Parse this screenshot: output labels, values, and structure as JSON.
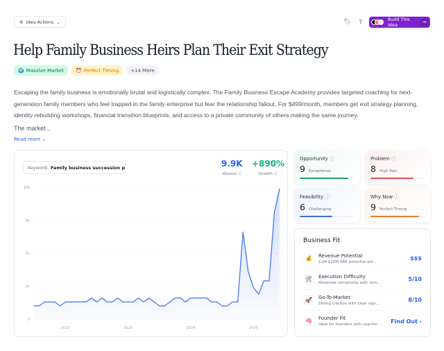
{
  "header": {
    "actions_label": "Idea Actions",
    "build_label": "Build This Idea"
  },
  "title": "Help Family Business Heirs Plan Their Exit Strategy",
  "tags": [
    {
      "label": "Massive Market",
      "icon": "globe"
    },
    {
      "label": "Perfect Timing",
      "icon": "alarm-clock"
    },
    {
      "label": "+14 More"
    }
  ],
  "description": "Escaping the family business is emotionally brutal and logistically complex. The Family Business Escape Academy provides targeted coaching for next-generation family members who feel trapped in the family enterprise but fear the relationship fallout. For $499/month, members get exit strategy planning, identity rebuilding workshops, financial transition blueprints, and access to a private community of others making the same journey.",
  "market": "The market...",
  "read_more": "Read more",
  "keyword": {
    "label": "Keyword:",
    "value": "Family business succession p..."
  },
  "stats": {
    "volume": "9.9K",
    "volume_label": "Volume",
    "growth": "+890%",
    "growth_label": "Growth"
  },
  "colors": {
    "accent": "#7e22ce",
    "line": "#4f7ef0",
    "volume": "#2563eb",
    "growth": "#10b981"
  },
  "chart_data": {
    "type": "area",
    "x": [
      "2021-07",
      "2021-08",
      "2021-09",
      "2021-10",
      "2021-11",
      "2021-12",
      "2022-01",
      "2022-02",
      "2022-03",
      "2022-04",
      "2022-05",
      "2022-06",
      "2022-07",
      "2022-08",
      "2022-09",
      "2022-10",
      "2022-11",
      "2022-12",
      "2023-01",
      "2023-02",
      "2023-03",
      "2023-04",
      "2023-05",
      "2023-06",
      "2023-07",
      "2023-08",
      "2023-09",
      "2023-10",
      "2023-11",
      "2023-12",
      "2024-01",
      "2024-02",
      "2024-03",
      "2024-04",
      "2024-05",
      "2024-06",
      "2024-07",
      "2024-08",
      "2024-09",
      "2024-10",
      "2024-11",
      "2024-12",
      "2025-01",
      "2025-02",
      "2025-03",
      "2025-04",
      "2025-05",
      "2025-06"
    ],
    "values": [
      1000,
      1000,
      1300,
      1300,
      1300,
      1000,
      1300,
      1300,
      1300,
      1300,
      1300,
      1600,
      1300,
      1600,
      1300,
      1300,
      1600,
      1300,
      1300,
      1300,
      1600,
      1300,
      1600,
      1300,
      1000,
      1000,
      1300,
      1600,
      1600,
      1300,
      1600,
      1600,
      1600,
      1600,
      1300,
      1300,
      1000,
      1000,
      1300,
      1300,
      6600,
      3600,
      2400,
      1900,
      2900,
      2900,
      8100,
      9900
    ],
    "ylim": [
      0,
      10000
    ],
    "y_ticks": [
      0,
      2500,
      5000,
      7500,
      10000
    ],
    "y_tick_labels": [
      "0",
      "3k",
      "5k",
      "8k",
      "10k"
    ],
    "x_tick_labels": [
      "2022",
      "2023",
      "2024",
      "2025"
    ],
    "grid": true
  },
  "scores": [
    {
      "title": "Opportunity",
      "value": "9",
      "label": "Exceptional",
      "fill": 0.9,
      "color": "#22a06b",
      "bg": "#eefaf3"
    },
    {
      "title": "Problem",
      "value": "8",
      "label": "High Pain",
      "fill": 0.8,
      "color": "#e05252",
      "bg": "#fdf0f0"
    },
    {
      "title": "Feasibility",
      "value": "6",
      "label": "Challenging",
      "fill": 0.6,
      "color": "#3b6fe0",
      "bg": "#eef3fd"
    },
    {
      "title": "Why Now",
      "value": "9",
      "label": "Perfect Timing",
      "fill": 0.9,
      "color": "#ea7a2c",
      "bg": "#fef5ec"
    }
  ],
  "fit": {
    "title": "Business Fit",
    "rows": [
      {
        "icon": "money-bag",
        "title": "Revenue Potential",
        "sub": "$1M-$10M ARR potential wit...",
        "value": "$$$"
      },
      {
        "icon": "tools",
        "title": "Execution Difficulty",
        "sub": "Moderate complexity with nich...",
        "value": "5/10"
      },
      {
        "icon": "rocket",
        "title": "Go-To-Market",
        "sub": "Strong traction with clear sign...",
        "value": "8/10"
      },
      {
        "icon": "brain",
        "title": "Founder Fit",
        "sub": "Ideal for founders with coachin...",
        "value": "Find Out ›"
      }
    ]
  }
}
